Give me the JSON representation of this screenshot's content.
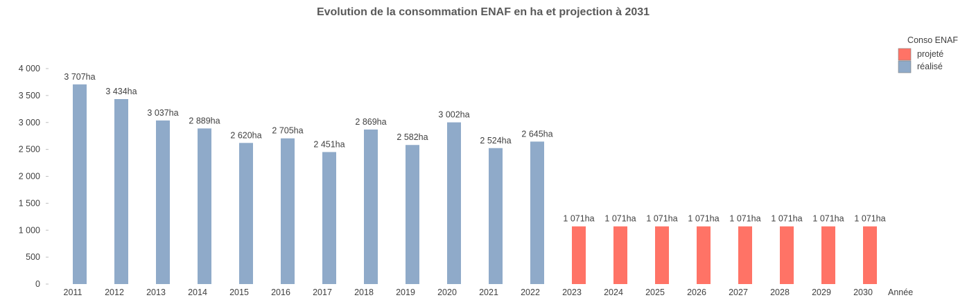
{
  "chart_data": {
    "type": "bar",
    "title": "Evolution de la consommation ENAF en ha et projection à 2031",
    "xlabel": "Année",
    "ylabel": "",
    "ylim": [
      0,
      4000
    ],
    "yticks": [
      0,
      500,
      1000,
      1500,
      2000,
      2500,
      3000,
      3500,
      4000
    ],
    "ytick_labels": [
      "0",
      "500",
      "1 000",
      "1 500",
      "2 000",
      "2 500",
      "3 000",
      "3 500",
      "4 000"
    ],
    "grid": false,
    "legend_position": "top-right",
    "legend_title": "Conso ENAF",
    "categories": [
      "2011",
      "2012",
      "2013",
      "2014",
      "2015",
      "2016",
      "2017",
      "2018",
      "2019",
      "2020",
      "2021",
      "2022",
      "2023",
      "2024",
      "2025",
      "2026",
      "2027",
      "2028",
      "2029",
      "2030"
    ],
    "series": [
      {
        "name": "projeté",
        "color": "#ff7366",
        "values": [
          null,
          null,
          null,
          null,
          null,
          null,
          null,
          null,
          null,
          null,
          null,
          null,
          1071,
          1071,
          1071,
          1071,
          1071,
          1071,
          1071,
          1071
        ],
        "labels": [
          "",
          "",
          "",
          "",
          "",
          "",
          "",
          "",
          "",
          "",
          "",
          "",
          "1 071ha",
          "1 071ha",
          "1 071ha",
          "1 071ha",
          "1 071ha",
          "1 071ha",
          "1 071ha",
          "1 071ha"
        ]
      },
      {
        "name": "réalisé",
        "color": "#8faac9",
        "values": [
          3707,
          3434,
          3037,
          2889,
          2620,
          2705,
          2451,
          2869,
          2582,
          3002,
          2524,
          2645,
          null,
          null,
          null,
          null,
          null,
          null,
          null,
          null
        ],
        "labels": [
          "3 707ha",
          "3 434ha",
          "3 037ha",
          "2 889ha",
          "2 620ha",
          "2 705ha",
          "2 451ha",
          "2 869ha",
          "2 582ha",
          "3 002ha",
          "2 524ha",
          "2 645ha",
          "",
          "",
          "",
          "",
          "",
          "",
          "",
          ""
        ]
      }
    ]
  }
}
